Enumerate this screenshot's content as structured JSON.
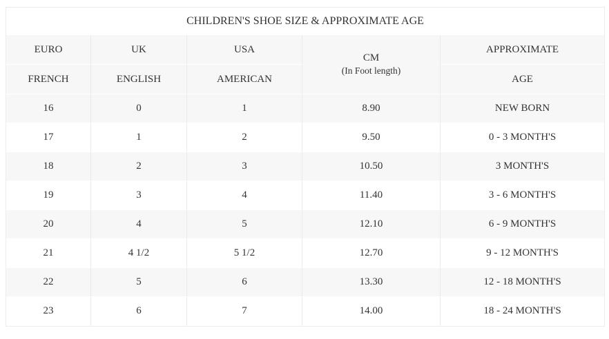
{
  "table": {
    "title": "CHILDREN'S SHOE SIZE & APPROXIMATE AGE",
    "columns": [
      {
        "line1": "EURO",
        "line2": "FRENCH"
      },
      {
        "line1": "UK",
        "line2": "ENGLISH"
      },
      {
        "line1": "USA",
        "line2": "AMERICAN"
      },
      {
        "line1": "CM",
        "line2": "(In Foot length)"
      },
      {
        "line1": "APPROXIMATE",
        "line2": "AGE"
      }
    ],
    "column_keys": [
      "euro",
      "uk",
      "usa",
      "cm",
      "age"
    ],
    "rows": [
      [
        "16",
        "0",
        "1",
        "8.90",
        "NEW BORN"
      ],
      [
        "17",
        "1",
        "2",
        "9.50",
        "0 - 3 MONTH'S"
      ],
      [
        "18",
        "2",
        "3",
        "10.50",
        "3 MONTH'S"
      ],
      [
        "19",
        "3",
        "4",
        "11.40",
        "3 - 6 MONTH'S"
      ],
      [
        "20",
        "4",
        "5",
        "12.10",
        "6 - 9 MONTH'S"
      ],
      [
        "21",
        "4 1/2",
        "5 1/2",
        "12.70",
        "9 - 12 MONTH'S"
      ],
      [
        "22",
        "5",
        "6",
        "13.30",
        "12 - 18 MONTH'S"
      ],
      [
        "23",
        "6",
        "7",
        "14.00",
        "18 - 24 MONTH'S"
      ]
    ]
  },
  "colors": {
    "stripe": "#f7f7f7",
    "border": "#e9e9e9",
    "text": "#333333",
    "background": "#ffffff"
  }
}
